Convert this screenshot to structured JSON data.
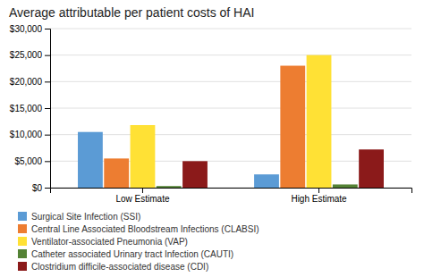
{
  "chart_data": {
    "type": "bar",
    "title": "Average attributable per patient costs of HAI",
    "categories": [
      "Low Estimate",
      "High Estimate"
    ],
    "series": [
      {
        "name": "Surgical Site Infection (SSI)",
        "color": "#5B9BD5",
        "values": [
          10500,
          2500
        ]
      },
      {
        "name": "Central Line Associated Bloodstream Infections (CLABSI)",
        "color": "#ED7D31",
        "values": [
          5500,
          23000
        ]
      },
      {
        "name": "Ventilator-associated Pneumonia (VAP)",
        "color": "#FFE135",
        "values": [
          11800,
          25000
        ]
      },
      {
        "name": "Catheter associated Urinary tract Infection (CAUTI)",
        "color": "#548235",
        "values": [
          300,
          600
        ]
      },
      {
        "name": "Clostridium difficile-associated disease (CDI)",
        "color": "#8B1A1A",
        "values": [
          5000,
          7200
        ]
      }
    ],
    "ylim": [
      0,
      30000
    ],
    "yticks": [
      {
        "value": 0,
        "label": "$0"
      },
      {
        "value": 5000,
        "label": "$5,000"
      },
      {
        "value": 10000,
        "label": "$10,000"
      },
      {
        "value": 15000,
        "label": "$15,000"
      },
      {
        "value": 20000,
        "label": "$20,000"
      },
      {
        "value": 25000,
        "label": "$25,000"
      },
      {
        "value": 30000,
        "label": "$30,000"
      }
    ],
    "grid": true,
    "legend": "bottom"
  }
}
